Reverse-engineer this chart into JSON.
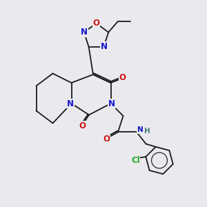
{
  "bg_color": "#eaeaee",
  "bond_color": "#1a1a1a",
  "N_color": "#1414cc",
  "O_color": "#cc1414",
  "Cl_color": "#22aa22",
  "H_color": "#447777",
  "fs": 8.5,
  "lw": 1.3,
  "xlim": [
    0,
    10
  ],
  "ylim": [
    0,
    10
  ]
}
